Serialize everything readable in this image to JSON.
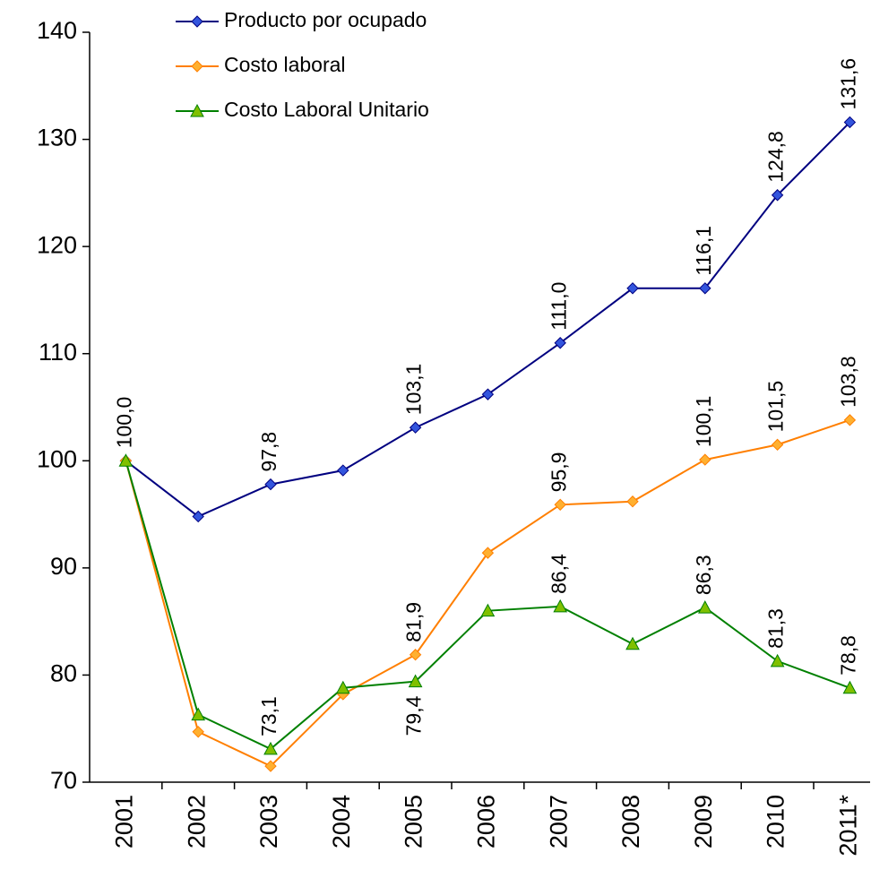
{
  "chart_data": {
    "type": "line",
    "categories": [
      "2001",
      "2002",
      "2003",
      "2004",
      "2005",
      "2006",
      "2007",
      "2008",
      "2009",
      "2010",
      "2011*"
    ],
    "series": [
      {
        "name": "Producto por ocupado",
        "color": "#000080",
        "marker_color": "#3355dd",
        "marker": "diamond",
        "values": [
          100.0,
          94.8,
          97.8,
          99.1,
          103.1,
          106.2,
          111.0,
          116.1,
          116.1,
          124.8,
          131.6
        ],
        "value_labels": [
          "100,0",
          null,
          "97,8",
          null,
          "103,1",
          null,
          "111,0",
          null,
          "116,1",
          "124,8",
          "131,6"
        ]
      },
      {
        "name": "Costo laboral",
        "color": "#ff7f00",
        "marker_color": "#ffb030",
        "marker": "diamond",
        "values": [
          100.0,
          74.7,
          71.5,
          78.2,
          81.9,
          91.4,
          95.9,
          96.2,
          100.1,
          101.5,
          103.8
        ],
        "value_labels": [
          null,
          null,
          null,
          null,
          "81,9",
          null,
          "95,9",
          null,
          "100,1",
          "101,5",
          "103,8"
        ]
      },
      {
        "name": "Costo Laboral Unitario",
        "color": "#008000",
        "marker_color": "#80c000",
        "marker": "triangle",
        "values": [
          100.0,
          76.3,
          73.1,
          78.8,
          79.4,
          86.0,
          86.4,
          82.9,
          86.3,
          81.3,
          78.8
        ],
        "value_labels": [
          null,
          null,
          "73,1",
          null,
          "79,4",
          null,
          "86,4",
          null,
          "86,3",
          "81,3",
          "78,8"
        ]
      }
    ],
    "ylim": [
      70,
      140
    ],
    "yticks": [
      70,
      80,
      90,
      100,
      110,
      120,
      130,
      140
    ],
    "grid": false,
    "legend": "top-left"
  }
}
